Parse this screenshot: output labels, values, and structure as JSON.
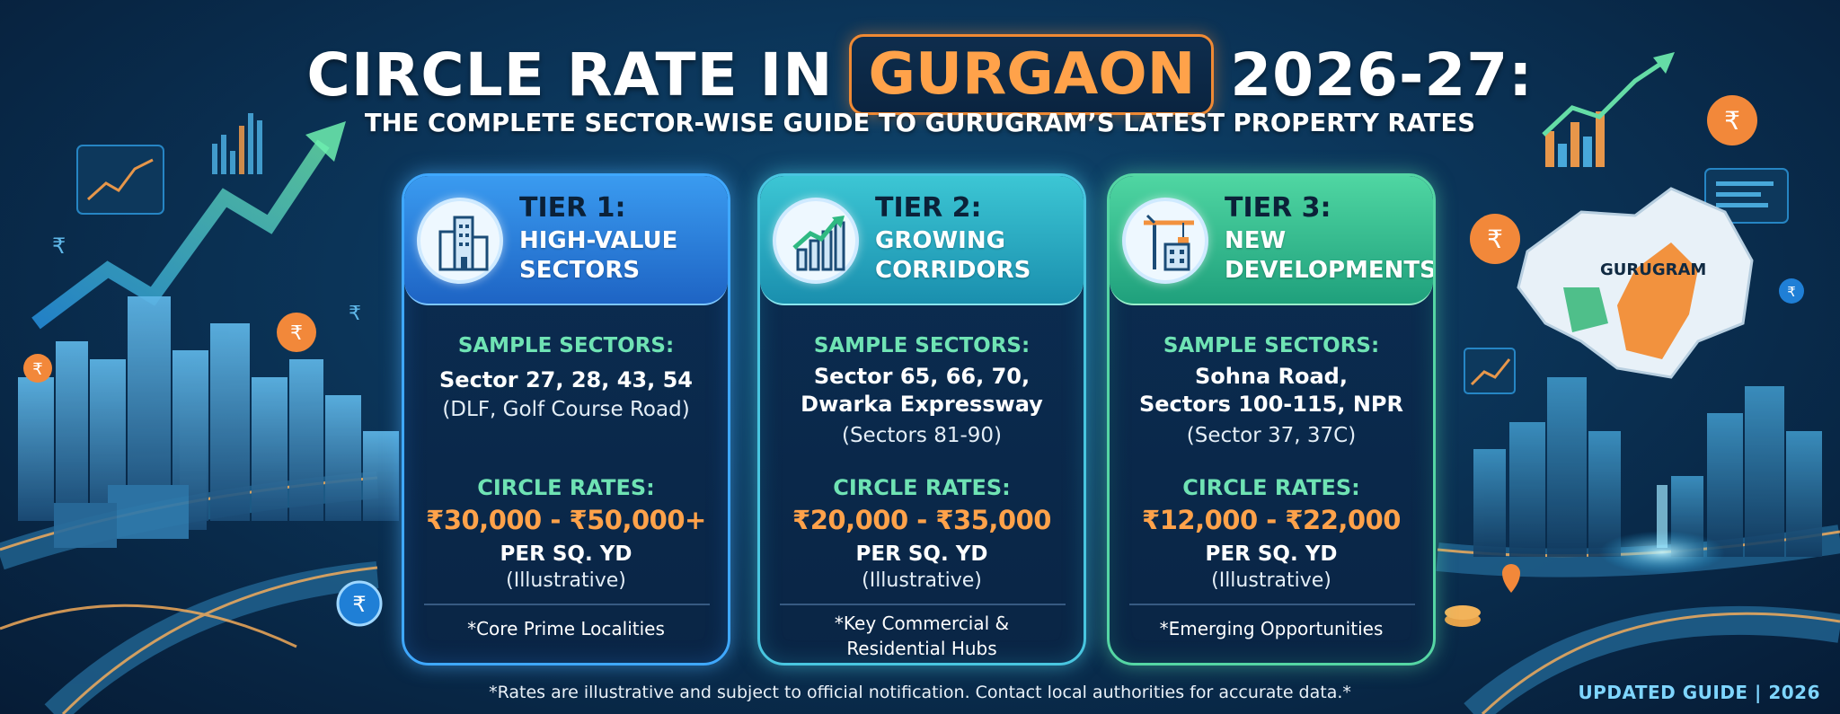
{
  "header": {
    "title_prefix": "CIRCLE RATE IN",
    "title_highlight": "GURGAON",
    "title_suffix": "2026-27:",
    "subtitle": "THE COMPLETE SECTOR-WISE GUIDE TO GURUGRAM’S LATEST PROPERTY RATES"
  },
  "map": {
    "label": "GURUGRAM"
  },
  "currency_badge": "₹",
  "tiers": [
    {
      "tier_label": "TIER 1:",
      "tier_name": [
        "HIGH-VALUE",
        "SECTORS"
      ],
      "icon": "office-buildings-icon",
      "sectors_label": "SAMPLE SECTORS:",
      "sectors_main": [
        "Sector 27, 28, 43, 54"
      ],
      "sectors_note": [
        "(DLF, Golf Course Road)"
      ],
      "rates_label": "CIRCLE RATES:",
      "rate_value": "₹30,000 - ₹50,000+",
      "rate_unit": "PER SQ. YD",
      "rate_note": "(Illustrative)",
      "footnote": [
        "*Core Prime Localities"
      ]
    },
    {
      "tier_label": "TIER 2:",
      "tier_name": [
        "GROWING",
        "CORRIDORS"
      ],
      "icon": "growth-chart-icon",
      "sectors_label": "SAMPLE SECTORS:",
      "sectors_main": [
        "Sector 65, 66, 70,",
        "Dwarka Expressway"
      ],
      "sectors_note": [
        "(Sectors 81-90)"
      ],
      "rates_label": "CIRCLE RATES:",
      "rate_value": "₹20,000 - ₹35,000",
      "rate_unit": "PER SQ. YD",
      "rate_note": "(Illustrative)",
      "footnote": [
        "*Key Commercial &",
        "Residential Hubs"
      ]
    },
    {
      "tier_label": "TIER 3:",
      "tier_name": [
        "NEW",
        "DEVELOPMENTS"
      ],
      "icon": "construction-crane-icon",
      "sectors_label": "SAMPLE SECTORS:",
      "sectors_main": [
        "Sohna Road,",
        "Sectors 100-115, NPR"
      ],
      "sectors_note": [
        "(Sector 37, 37C)"
      ],
      "rates_label": "CIRCLE RATES:",
      "rate_value": "₹12,000 - ₹22,000",
      "rate_unit": "PER SQ. YD",
      "rate_note": "(Illustrative)",
      "footnote": [
        "*Emerging Opportunities"
      ]
    }
  ],
  "footer": {
    "disclaimer": "*Rates are illustrative and subject to official notification. Contact local authorities for accurate data.*",
    "updated": "UPDATED GUIDE | 2026"
  },
  "colors": {
    "accent_orange": "#ffa24a",
    "label_green": "#6fe3b4",
    "tier1": "#3a9bf0",
    "tier2": "#3cc6d4",
    "tier3": "#4fd6a2"
  }
}
